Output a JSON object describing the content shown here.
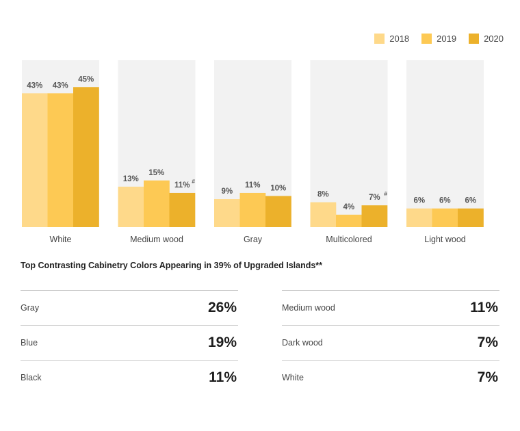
{
  "colors": {
    "2018": "#fed98a",
    "2019": "#fdc954",
    "2020": "#ecb12b",
    "panel": "#f2f2f2"
  },
  "legend": [
    {
      "label": "2018",
      "color": "#fed98a"
    },
    {
      "label": "2019",
      "color": "#fdc954"
    },
    {
      "label": "2020",
      "color": "#ecb12b"
    }
  ],
  "chart_data": {
    "type": "bar",
    "categories": [
      "White",
      "Medium wood",
      "Gray",
      "Multicolored",
      "Light wood"
    ],
    "series": [
      {
        "name": "2018",
        "values": [
          43,
          13,
          9,
          8,
          6
        ],
        "labels": [
          "43%",
          "13%",
          "9%",
          "8%",
          "6%"
        ]
      },
      {
        "name": "2019",
        "values": [
          43,
          15,
          11,
          4,
          6
        ],
        "labels": [
          "43%",
          "15%",
          "11%",
          "4%",
          "6%"
        ]
      },
      {
        "name": "2020",
        "values": [
          45,
          11,
          10,
          7,
          6
        ],
        "labels": [
          "45%",
          "11%",
          "10%",
          "7%",
          "6%"
        ]
      }
    ],
    "footnote_marks": [
      {
        "category": "Medium wood",
        "series": "2020",
        "mark": "#"
      },
      {
        "category": "Multicolored",
        "series": "2020",
        "mark": "#"
      }
    ],
    "ylim": [
      0,
      45
    ],
    "legend_position": "top-right",
    "grid": false
  },
  "subtitle": "Top Contrasting Cabinetry Colors Appearing in 39% of Upgraded Islands**",
  "contrast_left": [
    {
      "label": "Gray",
      "value": "26%"
    },
    {
      "label": "Blue",
      "value": "19%"
    },
    {
      "label": "Black",
      "value": "11%"
    }
  ],
  "contrast_right": [
    {
      "label": "Medium wood",
      "value": "11%"
    },
    {
      "label": "Dark wood",
      "value": "7%"
    },
    {
      "label": "White",
      "value": "7%"
    }
  ]
}
